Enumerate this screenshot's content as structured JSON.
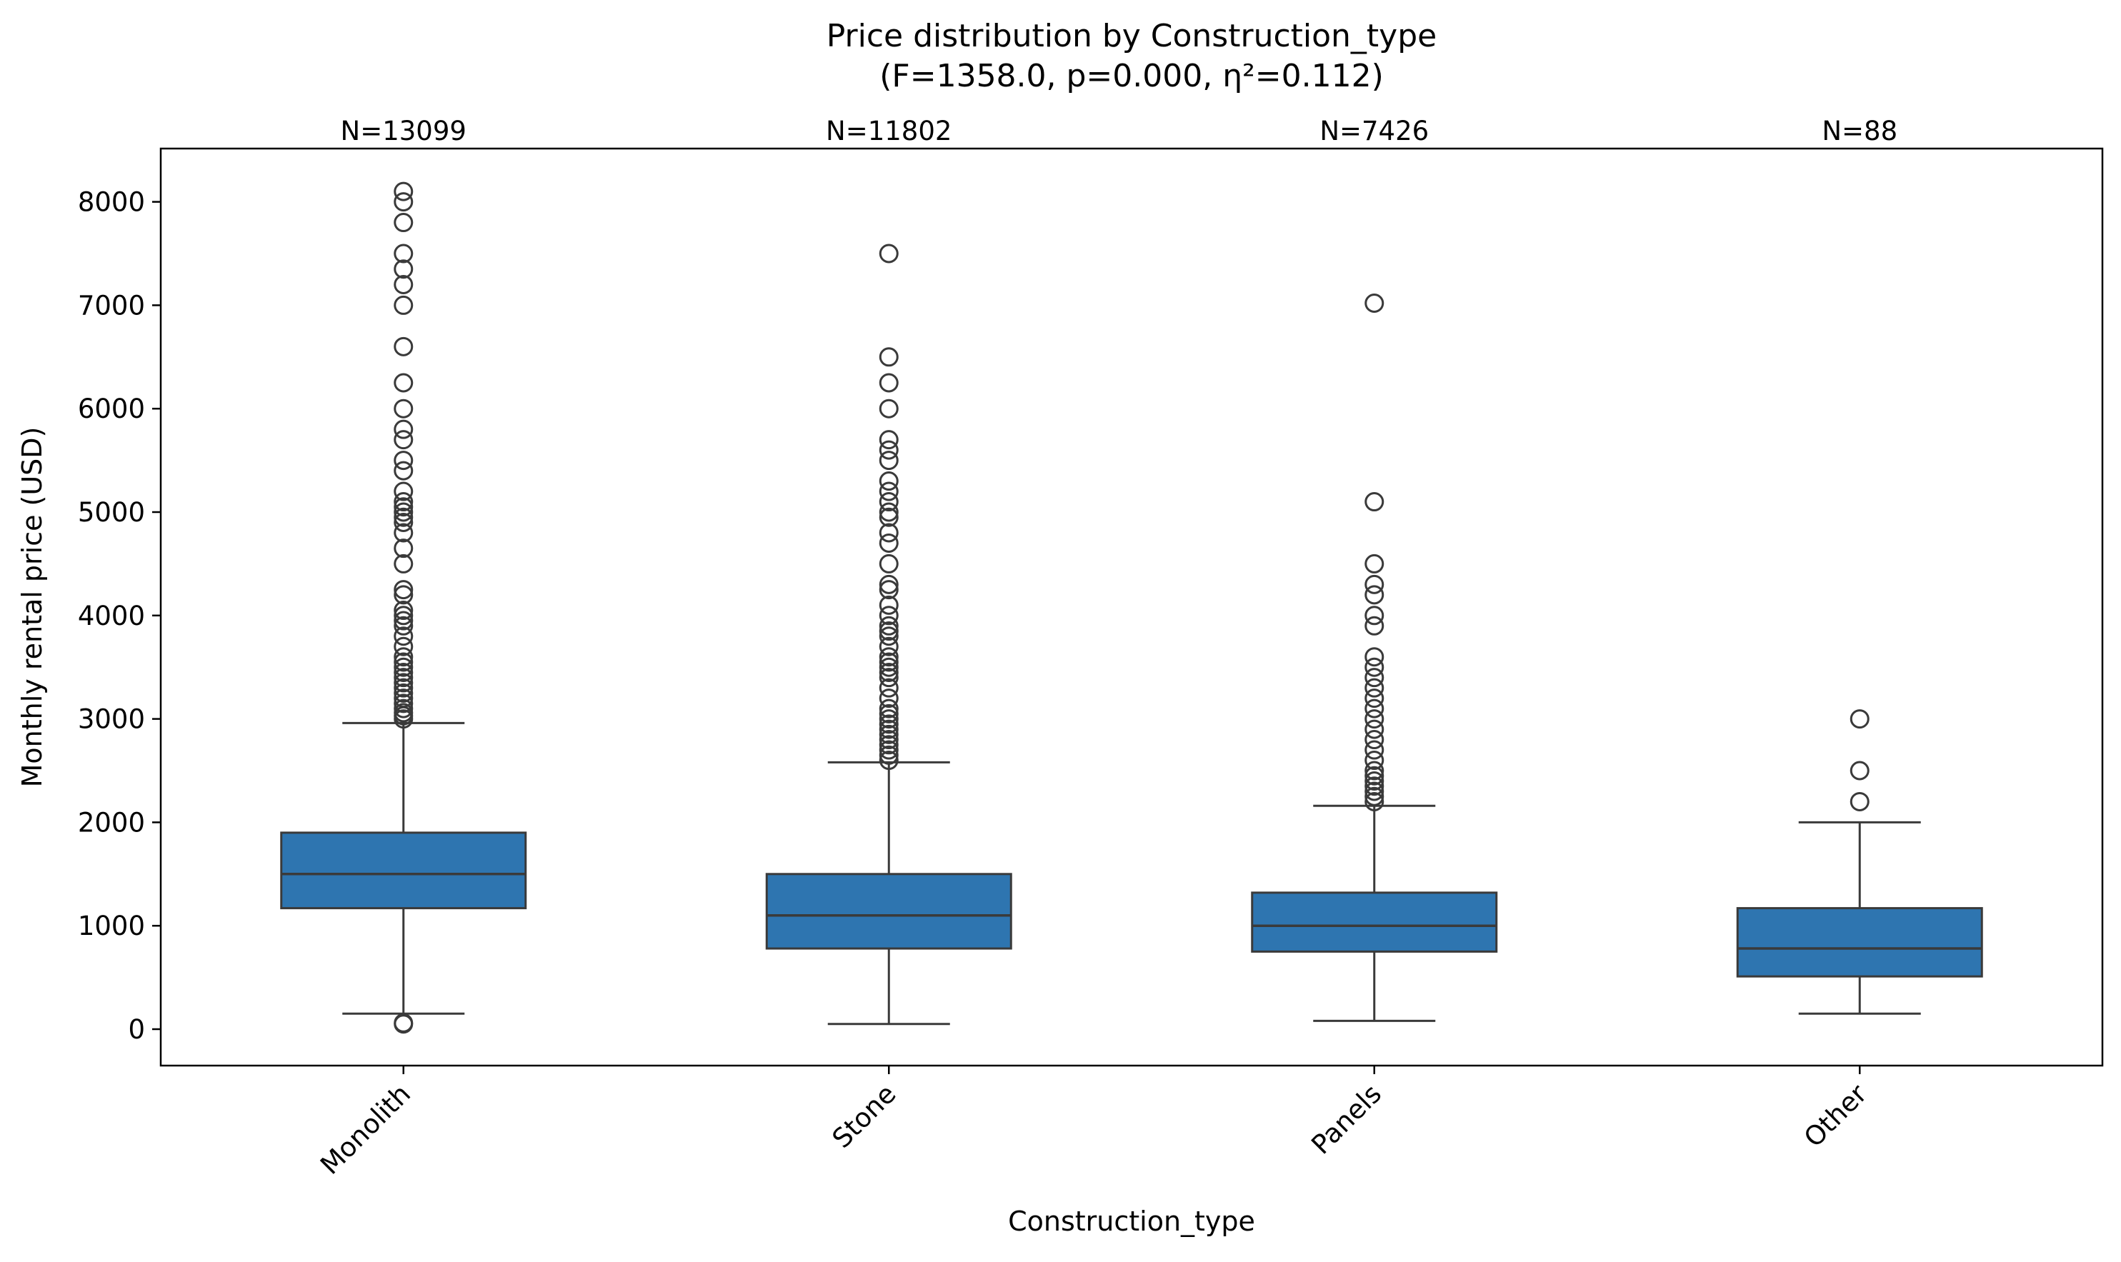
{
  "chart_data": {
    "type": "box",
    "title": "Price distribution by Construction_type",
    "subtitle": "(F=1358.0, p=0.000, η²=0.112)",
    "xlabel": "Construction_type",
    "ylabel": "Monthly rental price (USD)",
    "ylim": [
      -350,
      8480
    ],
    "yticks": [
      0,
      1000,
      2000,
      3000,
      4000,
      5000,
      6000,
      7000,
      8000
    ],
    "box_color": "#2e75b0",
    "line_color": "#3a3a3a",
    "categories": [
      "Monolith",
      "Stone",
      "Panels",
      "Other"
    ],
    "groups": [
      {
        "name": "Monolith",
        "n_label": "N=13099",
        "whisker_low": 150,
        "q1": 1170,
        "median": 1500,
        "q3": 1900,
        "whisker_high": 2960,
        "outliers": [
          50,
          60,
          3000,
          3030,
          3060,
          3100,
          3150,
          3200,
          3250,
          3300,
          3350,
          3400,
          3450,
          3500,
          3550,
          3600,
          3700,
          3800,
          3900,
          3950,
          4000,
          4050,
          4200,
          4250,
          4500,
          4650,
          4800,
          4900,
          4950,
          5000,
          5050,
          5100,
          5200,
          5400,
          5500,
          5700,
          5800,
          6000,
          6250,
          6600,
          7000,
          7200,
          7350,
          7500,
          7800,
          8000,
          8100
        ]
      },
      {
        "name": "Stone",
        "n_label": "N=11802",
        "whisker_low": 50,
        "q1": 780,
        "median": 1100,
        "q3": 1500,
        "whisker_high": 2580,
        "outliers": [
          2600,
          2650,
          2700,
          2750,
          2800,
          2850,
          2900,
          2950,
          3000,
          3050,
          3100,
          3200,
          3300,
          3400,
          3450,
          3500,
          3550,
          3600,
          3700,
          3800,
          3850,
          3900,
          4000,
          4100,
          4250,
          4300,
          4500,
          4700,
          4800,
          4950,
          5000,
          5100,
          5200,
          5300,
          5500,
          5600,
          5700,
          6000,
          6250,
          6500,
          7500
        ]
      },
      {
        "name": "Panels",
        "n_label": "N=7426",
        "whisker_low": 80,
        "q1": 750,
        "median": 1000,
        "q3": 1320,
        "whisker_high": 2160,
        "outliers": [
          2200,
          2250,
          2300,
          2350,
          2400,
          2450,
          2500,
          2600,
          2700,
          2800,
          2900,
          3000,
          3100,
          3200,
          3300,
          3400,
          3500,
          3600,
          3900,
          4000,
          4200,
          4300,
          4500,
          5100,
          7020
        ]
      },
      {
        "name": "Other",
        "n_label": "N=88",
        "whisker_low": 150,
        "q1": 510,
        "median": 780,
        "q3": 1170,
        "whisker_high": 2000,
        "outliers": [
          2200,
          2500,
          3000
        ]
      }
    ]
  }
}
